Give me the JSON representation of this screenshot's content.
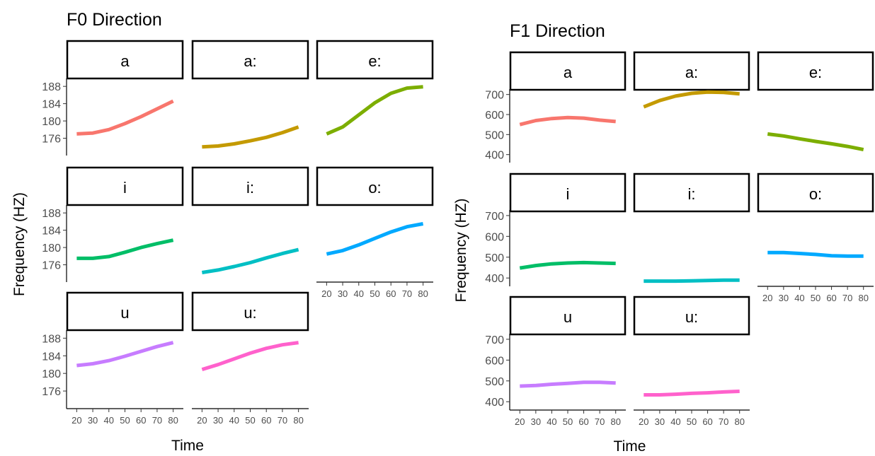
{
  "chart_data": [
    {
      "type": "line",
      "title": "F0 Direction",
      "xlabel": "Time",
      "ylabel": "Frequency (HZ)",
      "facet_strips": [
        "a",
        "a:",
        "e:",
        "i",
        "i:",
        "o:",
        "u",
        "u:"
      ],
      "x_ticks": [
        "20",
        "30",
        "40",
        "50",
        "60",
        "70",
        "80"
      ],
      "y_ticks": [
        "176",
        "180",
        "184",
        "188"
      ],
      "xlim": [
        15,
        85
      ],
      "ylim": [
        172,
        189.5
      ],
      "grid": false,
      "legend": "none",
      "series": [
        {
          "panel": "a",
          "color": "#F8766D",
          "x": [
            20,
            30,
            40,
            50,
            60,
            70,
            80
          ],
          "y": [
            177.0,
            177.2,
            178.0,
            179.4,
            181.0,
            182.8,
            184.6
          ]
        },
        {
          "panel": "a:",
          "color": "#C49A00",
          "x": [
            20,
            30,
            40,
            50,
            60,
            70,
            80
          ],
          "y": [
            174.0,
            174.2,
            174.7,
            175.4,
            176.2,
            177.3,
            178.6
          ]
        },
        {
          "panel": "e:",
          "color": "#7CAE00",
          "x": [
            20,
            30,
            40,
            50,
            60,
            70,
            80
          ],
          "y": [
            177.0,
            178.6,
            181.4,
            184.2,
            186.4,
            187.6,
            187.9
          ]
        },
        {
          "panel": "i",
          "color": "#00BE67",
          "x": [
            20,
            30,
            40,
            50,
            60,
            70,
            80
          ],
          "y": [
            177.5,
            177.5,
            177.9,
            178.9,
            180.0,
            180.9,
            181.7
          ]
        },
        {
          "panel": "i:",
          "color": "#00BFC4",
          "x": [
            20,
            30,
            40,
            50,
            60,
            70,
            80
          ],
          "y": [
            174.2,
            174.8,
            175.6,
            176.5,
            177.6,
            178.6,
            179.5
          ]
        },
        {
          "panel": "o:",
          "color": "#00A9FF",
          "x": [
            20,
            30,
            40,
            50,
            60,
            70,
            80
          ],
          "y": [
            178.5,
            179.3,
            180.6,
            182.1,
            183.6,
            184.8,
            185.5
          ]
        },
        {
          "panel": "u",
          "color": "#C77CFF",
          "x": [
            20,
            30,
            40,
            50,
            60,
            70,
            80
          ],
          "y": [
            181.8,
            182.2,
            182.9,
            183.9,
            185.0,
            186.1,
            187.0
          ]
        },
        {
          "panel": "u:",
          "color": "#FF61CC",
          "x": [
            20,
            30,
            40,
            50,
            60,
            70,
            80
          ],
          "y": [
            180.9,
            182.0,
            183.3,
            184.6,
            185.7,
            186.5,
            187.0
          ]
        }
      ]
    },
    {
      "type": "line",
      "title": "F1 Direction",
      "xlabel": "Time",
      "ylabel": "Frequency (HZ)",
      "facet_strips": [
        "a",
        "a:",
        "e:",
        "i",
        "i:",
        "o:",
        "u",
        "u:"
      ],
      "x_ticks": [
        "20",
        "30",
        "40",
        "50",
        "60",
        "70",
        "80"
      ],
      "y_ticks": [
        "400",
        "500",
        "600",
        "700"
      ],
      "xlim": [
        15,
        85
      ],
      "ylim": [
        360,
        720
      ],
      "grid": false,
      "legend": "none",
      "series": [
        {
          "panel": "a",
          "color": "#F8766D",
          "x": [
            20,
            30,
            40,
            50,
            60,
            70,
            80
          ],
          "y": [
            550,
            570,
            580,
            585,
            582,
            572,
            565
          ]
        },
        {
          "panel": "a:",
          "color": "#C49A00",
          "x": [
            20,
            30,
            40,
            50,
            60,
            70,
            80
          ],
          "y": [
            638,
            670,
            692,
            706,
            712,
            710,
            703
          ]
        },
        {
          "panel": "e:",
          "color": "#7CAE00",
          "x": [
            20,
            30,
            40,
            50,
            60,
            70,
            80
          ],
          "y": [
            503,
            493,
            479,
            466,
            454,
            441,
            425
          ]
        },
        {
          "panel": "i",
          "color": "#00BE67",
          "x": [
            20,
            30,
            40,
            50,
            60,
            70,
            80
          ],
          "y": [
            448,
            460,
            468,
            472,
            474,
            472,
            470
          ]
        },
        {
          "panel": "i:",
          "color": "#00BFC4",
          "x": [
            20,
            30,
            40,
            50,
            60,
            70,
            80
          ],
          "y": [
            385,
            385,
            385,
            386,
            388,
            390,
            390
          ]
        },
        {
          "panel": "o:",
          "color": "#00A9FF",
          "x": [
            20,
            30,
            40,
            50,
            60,
            70,
            80
          ],
          "y": [
            522,
            522,
            518,
            513,
            507,
            505,
            505
          ]
        },
        {
          "panel": "u",
          "color": "#C77CFF",
          "x": [
            20,
            30,
            40,
            50,
            60,
            70,
            80
          ],
          "y": [
            475,
            478,
            484,
            488,
            493,
            493,
            490
          ]
        },
        {
          "panel": "u:",
          "color": "#FF61CC",
          "x": [
            20,
            30,
            40,
            50,
            60,
            70,
            80
          ],
          "y": [
            433,
            433,
            436,
            440,
            443,
            447,
            450
          ]
        }
      ]
    }
  ]
}
